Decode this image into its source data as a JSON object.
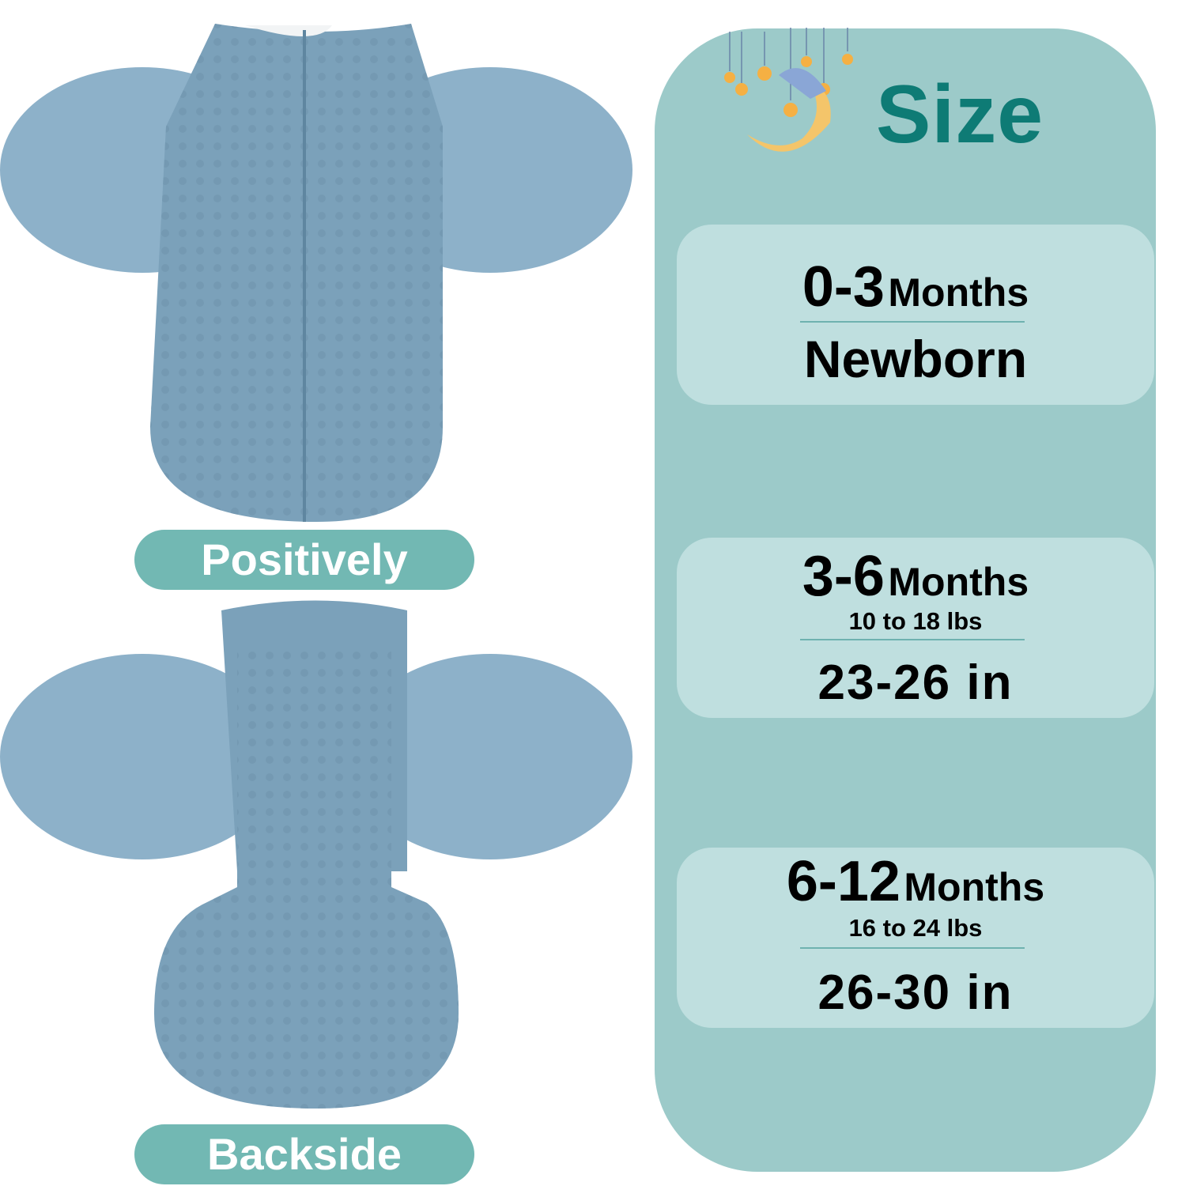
{
  "title": "Size",
  "sizes": [
    {
      "range": "0-3",
      "unit": "Months",
      "detail": "Newborn"
    },
    {
      "range": "3-6",
      "unit": "Months",
      "weight": "10 to 18 lbs",
      "length": "23-26 in"
    },
    {
      "range": "6-12",
      "unit": "Months",
      "weight": "16 to 24 lbs",
      "length": "26-30 in"
    }
  ],
  "labels": {
    "front": "Positively",
    "back": "Backside"
  },
  "colors": {
    "panel": "#9ccac9",
    "card": "#bfdfdf",
    "title": "#0e7b75",
    "pill": "#72b8b3",
    "fabric": "#7ba1ba"
  }
}
